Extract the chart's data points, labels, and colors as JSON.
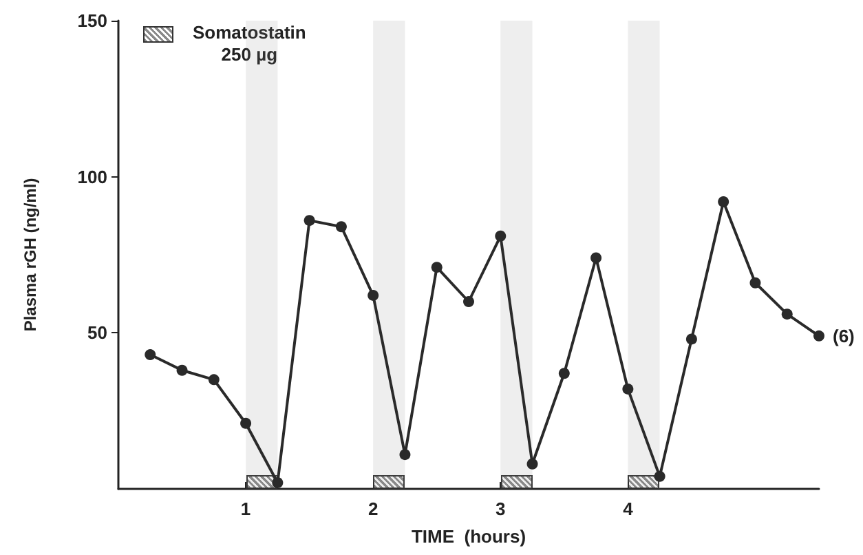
{
  "chart_data": {
    "type": "line",
    "xlabel": "TIME  (hours)",
    "ylabel": "Plasma rGH (ng/ml)",
    "x": [
      0.25,
      0.5,
      0.75,
      1,
      1.25,
      1.5,
      1.75,
      2,
      2.25,
      2.5,
      2.75,
      3,
      3.25,
      3.5,
      3.75,
      4,
      4.25,
      4.5,
      4.75,
      5,
      5.25,
      5.5
    ],
    "series": [
      {
        "color": "#2a2a2a",
        "values": [
          43,
          38,
          35,
          21,
          2,
          86,
          84,
          62,
          11,
          71,
          60,
          81,
          8,
          37,
          74,
          32,
          4,
          48,
          92,
          66,
          56,
          49
        ]
      }
    ],
    "xlim": [
      0,
      5.5
    ],
    "xticks": [
      1,
      2,
      3,
      4
    ],
    "ylim": [
      0,
      150
    ],
    "yticks": [
      50,
      100,
      150
    ],
    "marker": "circle",
    "line_style": "solid",
    "grid": false,
    "bands": [
      {
        "axis": "x",
        "from": 1,
        "to": 1.25,
        "label": "Somatostatin\n250 µg",
        "color": "#8a8a8a"
      },
      {
        "axis": "x",
        "from": 2,
        "to": 2.25,
        "color": "#8a8a8a"
      },
      {
        "axis": "x",
        "from": 3,
        "to": 3.25,
        "color": "#8a8a8a"
      },
      {
        "axis": "x",
        "from": 4,
        "to": 4.25,
        "color": "#8a8a8a"
      }
    ],
    "annotations": [
      {
        "text": "(6)",
        "x": 5.5,
        "y": 49
      }
    ]
  }
}
